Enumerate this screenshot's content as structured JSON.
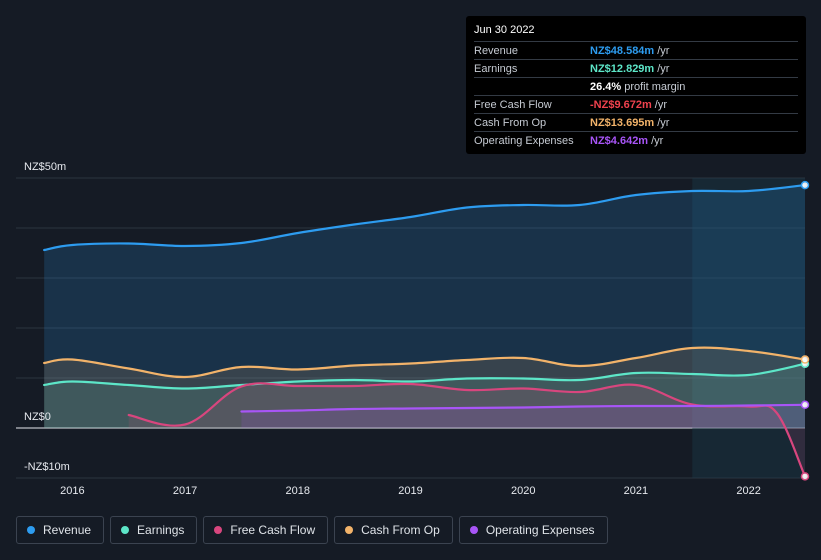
{
  "tooltip": {
    "date": "Jun 30 2022",
    "rows": [
      {
        "label": "Revenue",
        "value": "NZ$48.584m",
        "unit": "/yr",
        "color": "#2d9cf0"
      },
      {
        "label": "Earnings",
        "value": "NZ$12.829m",
        "unit": "/yr",
        "color": "#5de6c8"
      },
      {
        "label": "",
        "value": "26.4%",
        "unit": "profit margin",
        "color": "#ffffff"
      },
      {
        "label": "Free Cash Flow",
        "value": "-NZ$9.672m",
        "unit": "/yr",
        "color": "#f0424e"
      },
      {
        "label": "Cash From Op",
        "value": "NZ$13.695m",
        "unit": "/yr",
        "color": "#f2b36a"
      },
      {
        "label": "Operating Expenses",
        "value": "NZ$4.642m",
        "unit": "/yr",
        "color": "#a855f7"
      }
    ]
  },
  "legend": [
    {
      "label": "Revenue",
      "color": "#2d9cf0"
    },
    {
      "label": "Earnings",
      "color": "#5de6c8"
    },
    {
      "label": "Free Cash Flow",
      "color": "#d8467e"
    },
    {
      "label": "Cash From Op",
      "color": "#f2b36a"
    },
    {
      "label": "Operating Expenses",
      "color": "#a855f7"
    }
  ],
  "chart_data": {
    "type": "area",
    "y_axis_labels": [
      "NZ$50m",
      "NZ$0",
      "-NZ$10m"
    ],
    "ylim": [
      -10,
      50
    ],
    "xlim": [
      2015.5,
      2022.5
    ],
    "x_ticks": [
      2016,
      2017,
      2018,
      2019,
      2020,
      2021,
      2022
    ],
    "x_tick_labels": [
      "2016",
      "2017",
      "2018",
      "2019",
      "2020",
      "2021",
      "2022"
    ],
    "highlight_from": 2021.5,
    "series": [
      {
        "name": "Revenue",
        "color": "#2d9cf0",
        "points": [
          [
            2015.75,
            35.6
          ],
          [
            2016.0,
            36.6
          ],
          [
            2016.5,
            36.9
          ],
          [
            2017.0,
            36.4
          ],
          [
            2017.5,
            37.0
          ],
          [
            2018.0,
            39.0
          ],
          [
            2018.5,
            40.7
          ],
          [
            2019.0,
            42.2
          ],
          [
            2019.5,
            44.1
          ],
          [
            2020.0,
            44.6
          ],
          [
            2020.5,
            44.6
          ],
          [
            2021.0,
            46.6
          ],
          [
            2021.5,
            47.4
          ],
          [
            2022.0,
            47.4
          ],
          [
            2022.5,
            48.584
          ]
        ]
      },
      {
        "name": "Earnings",
        "color": "#5de6c8",
        "points": [
          [
            2015.75,
            8.6
          ],
          [
            2016.0,
            9.3
          ],
          [
            2016.5,
            8.6
          ],
          [
            2017.0,
            7.9
          ],
          [
            2017.5,
            8.6
          ],
          [
            2018.0,
            9.3
          ],
          [
            2018.5,
            9.6
          ],
          [
            2019.0,
            9.3
          ],
          [
            2019.5,
            9.9
          ],
          [
            2020.0,
            9.9
          ],
          [
            2020.5,
            9.6
          ],
          [
            2021.0,
            11.0
          ],
          [
            2021.5,
            10.8
          ],
          [
            2022.0,
            10.6
          ],
          [
            2022.5,
            12.829
          ]
        ]
      },
      {
        "name": "Free Cash Flow",
        "color": "#d8467e",
        "points": [
          [
            2016.5,
            2.6
          ],
          [
            2017.0,
            0.7
          ],
          [
            2017.5,
            8.3
          ],
          [
            2018.0,
            8.4
          ],
          [
            2018.5,
            8.4
          ],
          [
            2019.0,
            8.8
          ],
          [
            2019.5,
            7.6
          ],
          [
            2020.0,
            7.9
          ],
          [
            2020.5,
            7.2
          ],
          [
            2021.0,
            8.6
          ],
          [
            2021.5,
            4.7
          ],
          [
            2022.0,
            4.3
          ],
          [
            2022.25,
            3.0
          ],
          [
            2022.5,
            -9.672
          ]
        ]
      },
      {
        "name": "Cash From Op",
        "color": "#f2b36a",
        "points": [
          [
            2015.75,
            13.0
          ],
          [
            2016.0,
            13.7
          ],
          [
            2016.5,
            11.9
          ],
          [
            2017.0,
            10.2
          ],
          [
            2017.5,
            12.2
          ],
          [
            2018.0,
            11.7
          ],
          [
            2018.5,
            12.5
          ],
          [
            2019.0,
            12.9
          ],
          [
            2019.5,
            13.6
          ],
          [
            2020.0,
            14.0
          ],
          [
            2020.5,
            12.4
          ],
          [
            2021.0,
            14.0
          ],
          [
            2021.5,
            16.0
          ],
          [
            2022.0,
            15.4
          ],
          [
            2022.5,
            13.695
          ]
        ]
      },
      {
        "name": "Operating Expenses",
        "color": "#a855f7",
        "points": [
          [
            2017.5,
            3.3
          ],
          [
            2018.0,
            3.5
          ],
          [
            2018.5,
            3.8
          ],
          [
            2019.0,
            3.9
          ],
          [
            2019.5,
            4.0
          ],
          [
            2020.0,
            4.1
          ],
          [
            2020.5,
            4.3
          ],
          [
            2021.0,
            4.4
          ],
          [
            2021.5,
            4.4
          ],
          [
            2022.0,
            4.5
          ],
          [
            2022.5,
            4.642
          ]
        ]
      }
    ]
  }
}
